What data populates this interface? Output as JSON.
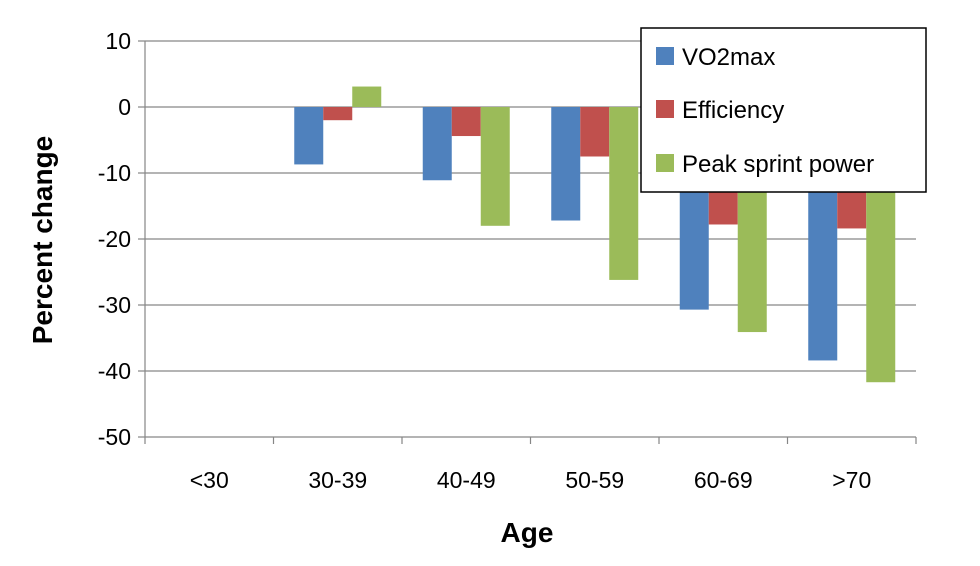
{
  "chart_data": {
    "type": "bar",
    "title": "",
    "xlabel": "Age",
    "ylabel": "Percent change",
    "categories": [
      "<30",
      "30-39",
      "40-49",
      "50-59",
      "60-69",
      ">70"
    ],
    "series": [
      {
        "name": "VO2max",
        "color": "#4F81BD",
        "values": [
          0,
          -8.7,
          -11.1,
          -17.2,
          -30.7,
          -38.4
        ]
      },
      {
        "name": "Efficiency",
        "color": "#C0504D",
        "values": [
          0,
          -2.0,
          -4.4,
          -7.5,
          -17.8,
          -18.4
        ]
      },
      {
        "name": "Peak sprint power",
        "color": "#9BBB59",
        "values": [
          0,
          3.1,
          -18.0,
          -26.2,
          -34.1,
          -41.7
        ]
      }
    ],
    "ylim": [
      -50,
      10
    ],
    "yticks": [
      10,
      0,
      -10,
      -20,
      -30,
      -40,
      -50
    ],
    "grid": true,
    "legend_position": "top-right"
  }
}
